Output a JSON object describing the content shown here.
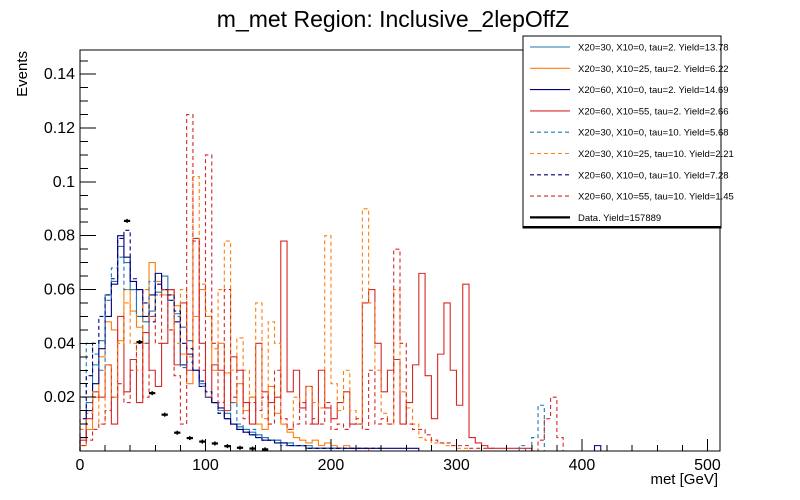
{
  "chart_data": {
    "type": "histogram",
    "title": "m_met Region: Inclusive_2lepOffZ",
    "xlabel": "met [GeV]",
    "ylabel": "Events",
    "xlim": [
      0,
      510
    ],
    "ylim": [
      0,
      0.149
    ],
    "xticks": [
      0,
      100,
      200,
      300,
      400,
      500
    ],
    "yticks": [
      0.02,
      0.04,
      0.06,
      0.08,
      0.1,
      0.12,
      0.14
    ],
    "xtick_labels": [
      "0",
      "100",
      "200",
      "300",
      "400",
      "500"
    ],
    "ytick_labels": [
      "0.02",
      "0.04",
      "0.06",
      "0.08",
      "0.1",
      "0.12",
      "0.14"
    ],
    "bin_width": 5,
    "legend_position": "top-right",
    "series": [
      {
        "name": "X20=30, X10=0, tau=2. Yield=13.78",
        "color": "#1f77b4",
        "style": "solid",
        "values": [
          0.005,
          0.018,
          0.032,
          0.041,
          0.058,
          0.063,
          0.076,
          0.07,
          0.06,
          0.05,
          0.048,
          0.052,
          0.059,
          0.065,
          0.06,
          0.051,
          0.046,
          0.041,
          0.03,
          0.025,
          0.02,
          0.018,
          0.015,
          0.014,
          0.01,
          0.009,
          0.008,
          0.007,
          0.006,
          0.005,
          0.004,
          0.004,
          0.003,
          0.003,
          0.002,
          0.002,
          0.002,
          0.001,
          0.001,
          0.001,
          0.001,
          0.001,
          0,
          0,
          0,
          0,
          0,
          0,
          0,
          0,
          0,
          0,
          0,
          0,
          0,
          0,
          0,
          0,
          0,
          0,
          0,
          0,
          0,
          0,
          0,
          0,
          0,
          0,
          0,
          0,
          0,
          0,
          0,
          0,
          0,
          0,
          0,
          0,
          0,
          0,
          0,
          0,
          0,
          0,
          0,
          0,
          0,
          0,
          0,
          0,
          0,
          0,
          0,
          0,
          0,
          0,
          0,
          0,
          0,
          0
        ]
      },
      {
        "name": "X20=30, X10=25, tau=2. Yield=6.22",
        "color": "#ff7f0e",
        "style": "solid",
        "values": [
          0.002,
          0.008,
          0.02,
          0.035,
          0.048,
          0.045,
          0.041,
          0.06,
          0.052,
          0.046,
          0.04,
          0.07,
          0.063,
          0.058,
          0.06,
          0.054,
          0.036,
          0.025,
          0.05,
          0.06,
          0.05,
          0.03,
          0.04,
          0.029,
          0.018,
          0.025,
          0.015,
          0.02,
          0.01,
          0.008,
          0.024,
          0.014,
          0.01,
          0.007,
          0.005,
          0.004,
          0.003,
          0.004,
          0.002,
          0.003,
          0.002,
          0.001,
          0.002,
          0.001,
          0.001,
          0.001,
          0,
          0,
          0,
          0,
          0,
          0,
          0,
          0,
          0,
          0,
          0,
          0,
          0,
          0,
          0,
          0,
          0,
          0,
          0,
          0,
          0,
          0,
          0,
          0,
          0,
          0,
          0,
          0,
          0,
          0,
          0,
          0,
          0,
          0,
          0,
          0,
          0,
          0,
          0,
          0,
          0,
          0,
          0,
          0,
          0,
          0,
          0,
          0,
          0,
          0,
          0,
          0,
          0,
          0,
          0,
          0
        ]
      },
      {
        "name": "X20=60, X10=0, tau=2. Yield=14.69",
        "color": "#00007f",
        "style": "solid",
        "values": [
          0.005,
          0.015,
          0.025,
          0.038,
          0.05,
          0.062,
          0.08,
          0.072,
          0.063,
          0.06,
          0.05,
          0.058,
          0.066,
          0.06,
          0.056,
          0.048,
          0.032,
          0.036,
          0.03,
          0.024,
          0.02,
          0.018,
          0.016,
          0.012,
          0.01,
          0.008,
          0.007,
          0.006,
          0.005,
          0.004,
          0.004,
          0.003,
          0.003,
          0.002,
          0.002,
          0.002,
          0.001,
          0.001,
          0.001,
          0.001,
          0.001,
          0.001,
          0.001,
          0.001,
          0.001,
          0.001,
          0.001,
          0.001,
          0.001,
          0.001,
          0.001,
          0.001,
          0.001,
          0.001,
          0,
          0,
          0,
          0,
          0,
          0,
          0,
          0,
          0,
          0,
          0,
          0,
          0,
          0,
          0,
          0,
          0,
          0,
          0,
          0,
          0,
          0,
          0,
          0,
          0,
          0,
          0,
          0,
          0.002,
          0,
          0,
          0,
          0,
          0,
          0,
          0,
          0,
          0,
          0,
          0,
          0,
          0,
          0,
          0,
          0,
          0,
          0,
          0
        ]
      },
      {
        "name": "X20=60, X10=55, tau=2. Yield=2.66",
        "color": "#d62728",
        "style": "solid",
        "values": [
          0.004,
          0.012,
          0.022,
          0.02,
          0.032,
          0.01,
          0.05,
          0.022,
          0.034,
          0.018,
          0.044,
          0.03,
          0.024,
          0.04,
          0.06,
          0.032,
          0.055,
          0.03,
          0.079,
          0.04,
          0.02,
          0.032,
          0.03,
          0.015,
          0.035,
          0.03,
          0.018,
          0.01,
          0.04,
          0.022,
          0.018,
          0.02,
          0.078,
          0.022,
          0.03,
          0.016,
          0.024,
          0.01,
          0.03,
          0.016,
          0.012,
          0.018,
          0.022,
          0.01,
          0.01,
          0.055,
          0.06,
          0.04,
          0.022,
          0.03,
          0.034,
          0.01,
          0.018,
          0.032,
          0.066,
          0.028,
          0.012,
          0.036,
          0.055,
          0.03,
          0.017,
          0.062,
          0.005,
          0.003,
          0.002,
          0.001,
          0.001,
          0.001,
          0.001,
          0.001,
          0.001,
          0.001,
          0,
          0,
          0,
          0,
          0,
          0,
          0,
          0,
          0,
          0,
          0,
          0,
          0,
          0,
          0,
          0,
          0,
          0,
          0,
          0,
          0,
          0,
          0,
          0,
          0,
          0,
          0,
          0,
          0,
          0
        ]
      },
      {
        "name": "X20=30, X10=0, tau=10. Yield=5.68",
        "color": "#1f77b4",
        "style": "dashed",
        "values": [
          0.02,
          0.04,
          0.036,
          0.03,
          0.056,
          0.068,
          0.072,
          0.06,
          0.06,
          0.05,
          0.04,
          0.063,
          0.058,
          0.06,
          0.056,
          0.05,
          0.031,
          0.033,
          0.03,
          0.024,
          0.02,
          0.018,
          0.014,
          0.012,
          0.018,
          0.01,
          0.008,
          0.008,
          0.006,
          0.005,
          0.004,
          0.004,
          0.002,
          0.003,
          0.002,
          0.002,
          0.001,
          0.001,
          0.001,
          0.001,
          0.001,
          0.001,
          0,
          0,
          0,
          0,
          0,
          0,
          0,
          0,
          0,
          0,
          0,
          0,
          0,
          0,
          0,
          0,
          0,
          0,
          0,
          0,
          0,
          0,
          0,
          0,
          0,
          0,
          0,
          0,
          0.002,
          0,
          0.005,
          0.017,
          0,
          0,
          0,
          0,
          0,
          0,
          0,
          0,
          0,
          0,
          0,
          0,
          0,
          0,
          0,
          0,
          0,
          0,
          0,
          0,
          0,
          0,
          0,
          0,
          0,
          0,
          0,
          0
        ]
      },
      {
        "name": "X20=30, X10=25, tau=10. Yield=2.21",
        "color": "#ff7f0e",
        "style": "dashed",
        "values": [
          0.008,
          0.014,
          0.022,
          0.01,
          0.032,
          0.02,
          0.04,
          0.055,
          0.04,
          0.03,
          0.06,
          0.05,
          0.058,
          0.06,
          0.058,
          0.04,
          0.06,
          0.035,
          0.102,
          0.062,
          0.052,
          0.038,
          0.06,
          0.078,
          0.03,
          0.042,
          0.03,
          0.02,
          0.055,
          0.012,
          0.048,
          0.04,
          0.01,
          0.008,
          0.02,
          0.018,
          0.024,
          0.018,
          0.016,
          0.08,
          0.025,
          0.015,
          0.03,
          0.015,
          0.01,
          0.09,
          0.055,
          0.03,
          0.014,
          0.01,
          0.06,
          0.022,
          0.016,
          0.01,
          0.005,
          0.004,
          0.003,
          0.003,
          0.002,
          0.002,
          0.001,
          0.001,
          0,
          0,
          0,
          0,
          0,
          0,
          0,
          0,
          0,
          0,
          0,
          0,
          0,
          0,
          0,
          0,
          0,
          0,
          0,
          0,
          0,
          0,
          0,
          0,
          0,
          0,
          0,
          0,
          0,
          0,
          0,
          0,
          0,
          0,
          0,
          0,
          0,
          0,
          0,
          0
        ]
      },
      {
        "name": "X20=60, X10=0, tau=10. Yield=7.28",
        "color": "#00007f",
        "style": "dashed",
        "values": [
          0.012,
          0.028,
          0.04,
          0.05,
          0.058,
          0.064,
          0.079,
          0.082,
          0.064,
          0.06,
          0.055,
          0.048,
          0.062,
          0.06,
          0.058,
          0.052,
          0.04,
          0.038,
          0.03,
          0.026,
          0.022,
          0.018,
          0.014,
          0.012,
          0.01,
          0.008,
          0.007,
          0.006,
          0.005,
          0.004,
          0.004,
          0.003,
          0.003,
          0.002,
          0.002,
          0.002,
          0.001,
          0.001,
          0.001,
          0.001,
          0.001,
          0.001,
          0.001,
          0.001,
          0.001,
          0.001,
          0.001,
          0.001,
          0,
          0,
          0,
          0,
          0,
          0,
          0,
          0,
          0,
          0,
          0,
          0,
          0,
          0,
          0,
          0,
          0,
          0,
          0,
          0,
          0,
          0,
          0,
          0,
          0,
          0,
          0,
          0,
          0,
          0,
          0,
          0,
          0,
          0,
          0,
          0,
          0,
          0,
          0,
          0,
          0,
          0,
          0,
          0,
          0,
          0,
          0,
          0,
          0,
          0,
          0,
          0
        ]
      },
      {
        "name": "X20=60, X10=55, tau=10. Yield=1.45",
        "color": "#d62728",
        "style": "dashed",
        "values": [
          0.002,
          0.004,
          0.008,
          0.01,
          0.015,
          0.02,
          0.025,
          0.018,
          0.03,
          0.04,
          0.02,
          0.05,
          0.04,
          0.06,
          0.045,
          0.028,
          0.01,
          0.125,
          0.078,
          0.03,
          0.11,
          0.04,
          0.018,
          0.06,
          0.02,
          0.03,
          0.012,
          0.018,
          0.015,
          0.02,
          0.01,
          0.03,
          0.012,
          0.008,
          0.01,
          0.018,
          0.01,
          0.012,
          0.01,
          0.018,
          0.008,
          0.01,
          0.008,
          0.01,
          0.012,
          0.008,
          0.03,
          0.01,
          0.012,
          0.01,
          0.075,
          0.04,
          0.01,
          0.008,
          0.008,
          0.006,
          0.004,
          0.003,
          0.003,
          0.002,
          0.002,
          0.002,
          0.001,
          0.001,
          0.001,
          0.001,
          0,
          0,
          0,
          0,
          0,
          0,
          0,
          0.004,
          0.012,
          0.02,
          0.005,
          0,
          0,
          0,
          0,
          0,
          0,
          0,
          0,
          0,
          0,
          0,
          0,
          0,
          0,
          0,
          0,
          0,
          0,
          0,
          0,
          0,
          0,
          0,
          0,
          0
        ]
      }
    ],
    "data_series": {
      "name": "Data. Yield=157889",
      "color": "#000000",
      "points": [
        {
          "x": 37.5,
          "y": 0.0855
        },
        {
          "x": 47.5,
          "y": 0.0405
        },
        {
          "x": 57.5,
          "y": 0.0215
        },
        {
          "x": 67.5,
          "y": 0.0135
        },
        {
          "x": 77.5,
          "y": 0.0068
        },
        {
          "x": 87.5,
          "y": 0.0048
        },
        {
          "x": 97.5,
          "y": 0.0035
        },
        {
          "x": 107.5,
          "y": 0.0028
        },
        {
          "x": 117.5,
          "y": 0.0018
        },
        {
          "x": 127.5,
          "y": 0.0012
        },
        {
          "x": 137.5,
          "y": 0.0009
        },
        {
          "x": 147.5,
          "y": 0.0006
        }
      ]
    }
  }
}
